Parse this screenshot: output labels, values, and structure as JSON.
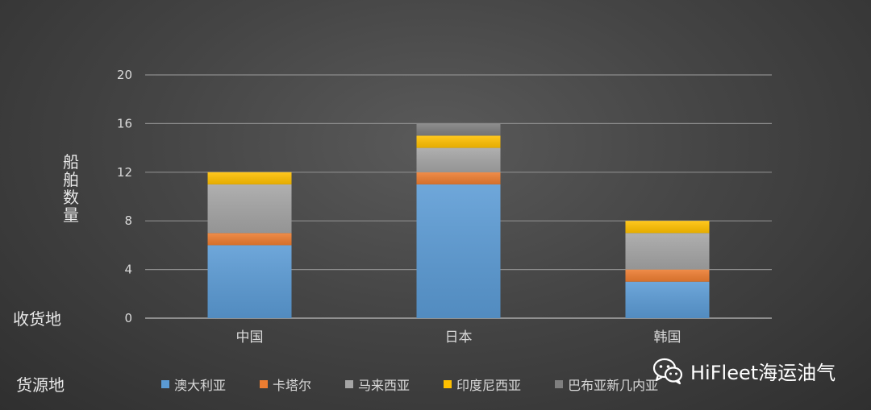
{
  "chart_data": {
    "type": "bar",
    "stacked": true,
    "categories": [
      "中国",
      "日本",
      "韩国"
    ],
    "series": [
      {
        "name": "澳大利亚",
        "color": "#5b9bd5",
        "values": [
          6,
          11,
          3
        ]
      },
      {
        "name": "卡塔尔",
        "color": "#ed7d31",
        "values": [
          1,
          1,
          1
        ]
      },
      {
        "name": "马来西亚",
        "color": "#a5a5a5",
        "values": [
          4,
          2,
          3
        ]
      },
      {
        "name": "印度尼西亚",
        "color": "#ffc000",
        "values": [
          1,
          1,
          1
        ]
      },
      {
        "name": "巴布亚新几内亚",
        "color": "#7f7f7f",
        "values": [
          0,
          1,
          0
        ]
      }
    ],
    "ylabel": "船舶数量",
    "ylim": [
      0,
      20
    ],
    "yticks": [
      0,
      4,
      8,
      12,
      16,
      20
    ],
    "grid": true,
    "legend_position": "bottom"
  },
  "labels": {
    "x_axis_title": "收货地",
    "legend_title": "货源地"
  },
  "watermark": {
    "text": "HiFleet海运油气",
    "icon": "wechat-icon"
  }
}
